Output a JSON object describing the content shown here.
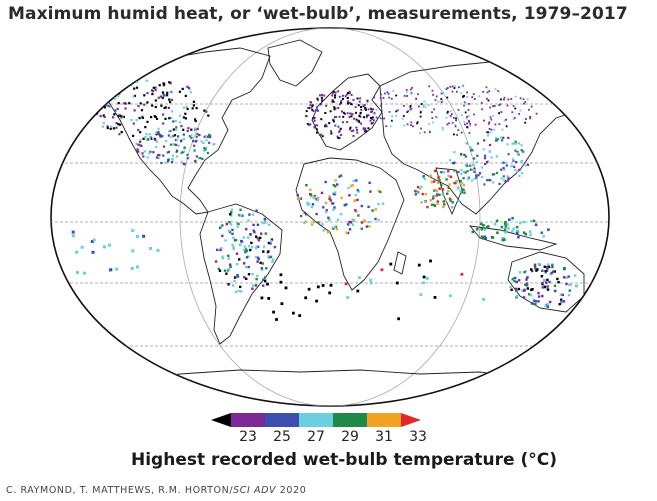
{
  "title": "Maximum humid heat, or ‘wet-bulb’, measurements, 1979–2017",
  "legend": {
    "title": "Highest recorded wet-bulb temperature (°C)",
    "ticks": [
      "23",
      "25",
      "27",
      "29",
      "31",
      "33"
    ],
    "colors": [
      "#000000",
      "#7b2a96",
      "#3a4fb0",
      "#6ccfe0",
      "#1e8a4a",
      "#f2a324",
      "#e1262c"
    ]
  },
  "credit": {
    "authors": "C. RAYMOND, T. MATTHEWS, R.M. HORTON/",
    "journal": "SCI ADV",
    "year": " 2020"
  }
}
